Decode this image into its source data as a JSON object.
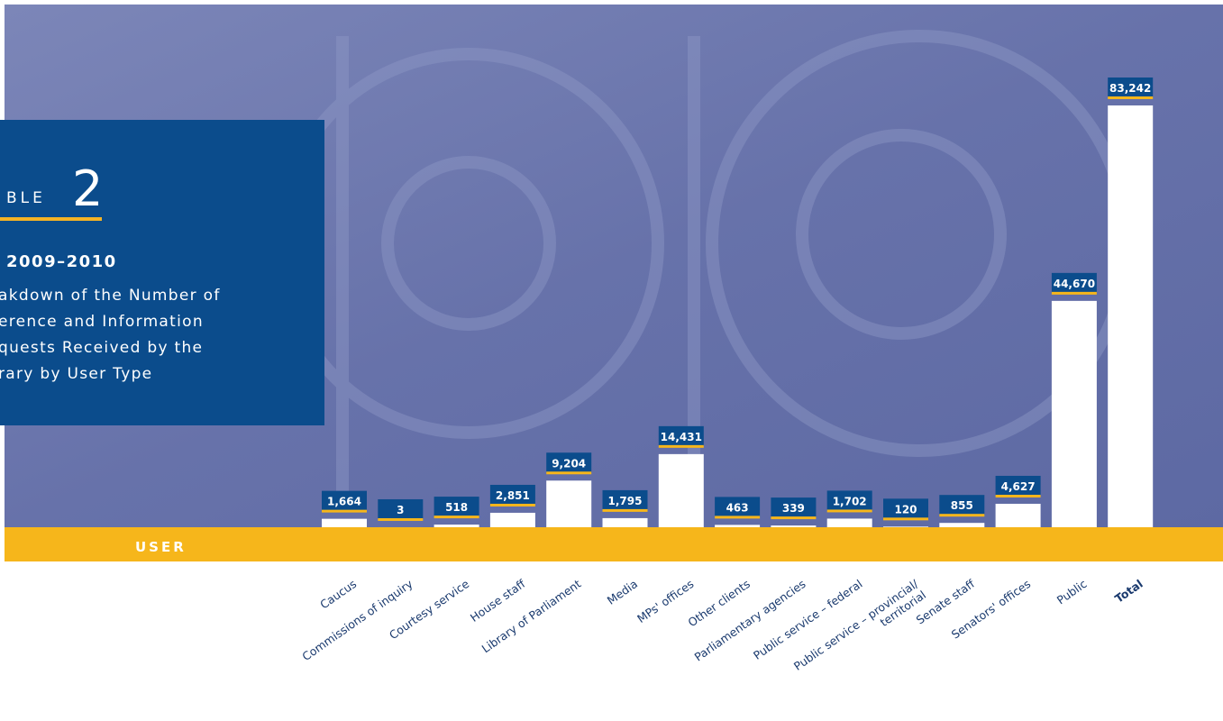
{
  "chart_data": {
    "type": "bar",
    "table_label": "BLE",
    "table_number": "2",
    "subtitle": "2009–2010",
    "title_lines": [
      "akdown of the Number of",
      "erence and Information",
      "quests Received by the",
      "rary by User Type"
    ],
    "xlabel": "USER",
    "categories": [
      "Caucus",
      "Commissions of inquiry",
      "Courtesy service",
      "House staff",
      "Library of Parliament",
      "Media",
      "MPs' offices",
      "Other clients",
      "Parliamentary agencies",
      "Public service – federal",
      "Public service – provincial/\nterritorial",
      "Senate staff",
      "Senators' offices",
      "Public",
      "Total"
    ],
    "values": [
      1664,
      3,
      518,
      2851,
      9204,
      1795,
      14431,
      463,
      339,
      1702,
      120,
      855,
      4627,
      44670,
      83242
    ],
    "value_labels": [
      "1,664",
      "3",
      "518",
      "2,851",
      "9,204",
      "1,795",
      "14,431",
      "463",
      "339",
      "1,702",
      "120",
      "855",
      "4,627",
      "44,670",
      "83,242"
    ],
    "color": "#ffffff"
  }
}
